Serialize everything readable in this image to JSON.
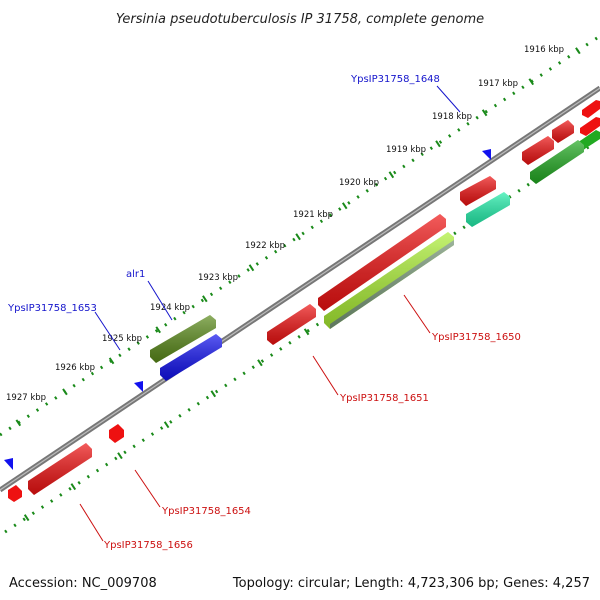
{
  "title": "Yersinia pseudotuberculosis IP 31758, complete genome",
  "footer": {
    "accession": "Accession: NC_009708",
    "stats": "Topology: circular; Length: 4,723,306 bp; Genes: 4,257"
  },
  "ticks": [
    "1916 kbp",
    "1917 kbp",
    "1918 kbp",
    "1919 kbp",
    "1920 kbp",
    "1921 kbp",
    "1922 kbp",
    "1923 kbp",
    "1924 kbp",
    "1925 kbp",
    "1926 kbp",
    "1927 kbp"
  ],
  "gene_labels": [
    {
      "id": "YpsIP31758_1648",
      "color": "blue"
    },
    {
      "id": "alr1",
      "color": "blue"
    },
    {
      "id": "YpsIP31758_1653",
      "color": "blue"
    },
    {
      "id": "YpsIP31758_1650",
      "color": "red"
    },
    {
      "id": "YpsIP31758_1651",
      "color": "red"
    },
    {
      "id": "YpsIP31758_1654",
      "color": "red"
    },
    {
      "id": "YpsIP31758_1656",
      "color": "red"
    }
  ],
  "colors": {
    "backbone": "#7a7a7a",
    "scale_dots": "#1a8a1a",
    "gene_red": "#ee1111",
    "gene_blue": "#1111ee",
    "gene_olive": "#5a8a1a",
    "gene_lime": "#aaee33",
    "gene_green": "#22aa22",
    "gene_teal": "#22eeaa",
    "label_blue": "#1515cc",
    "label_red": "#cc1010"
  }
}
